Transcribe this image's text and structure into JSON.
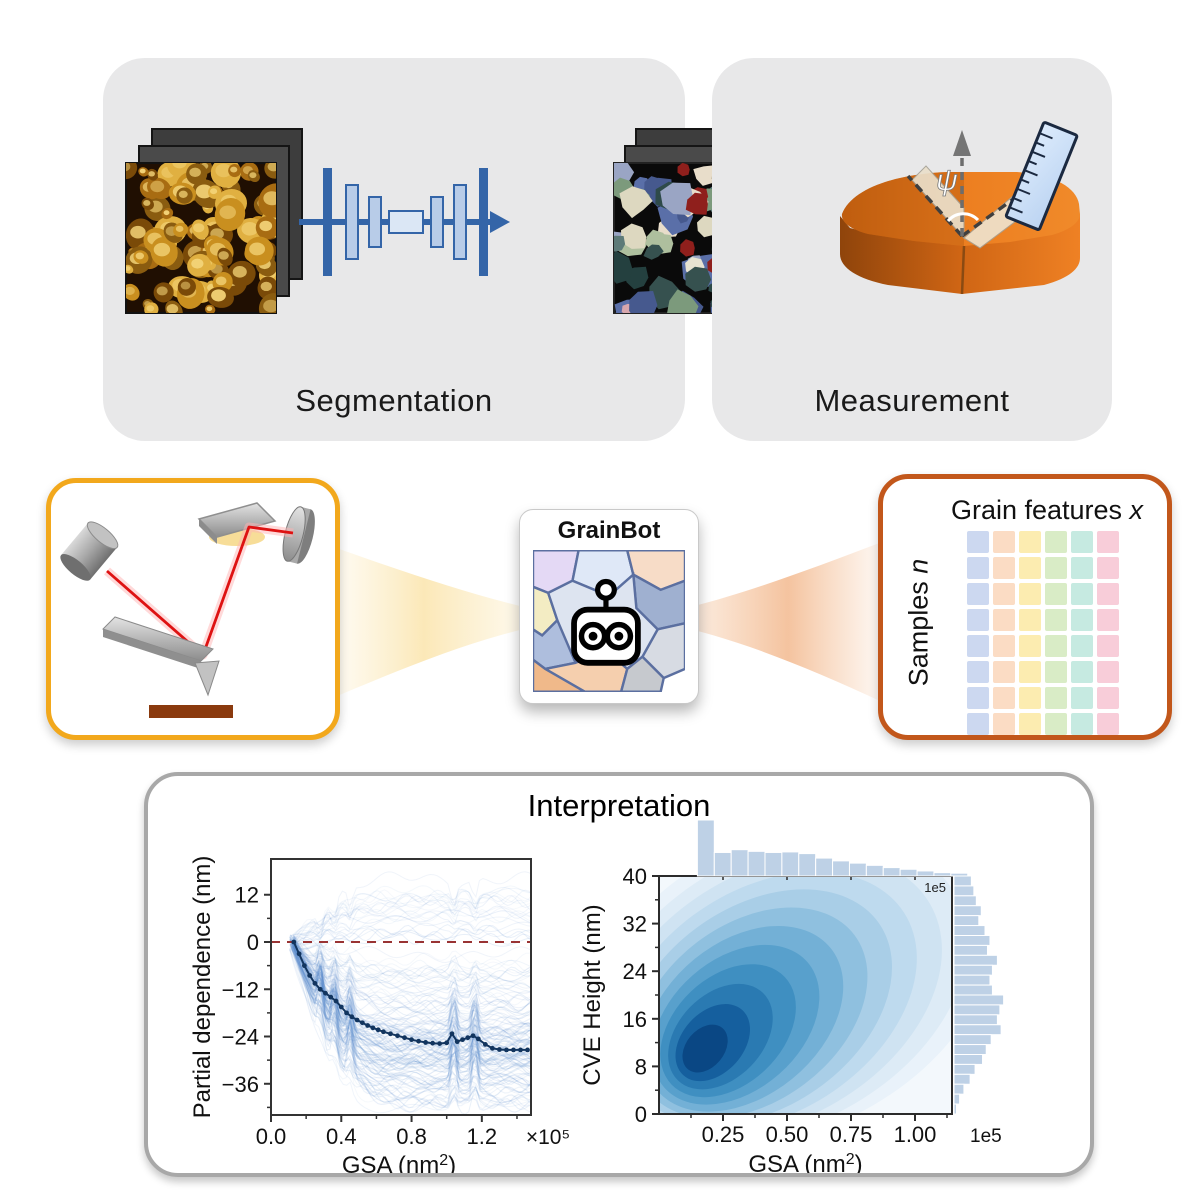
{
  "panels": {
    "segmentation": {
      "label": "Segmentation"
    },
    "measurement": {
      "label": "Measurement",
      "angle_symbol": "ψ"
    },
    "grainbot": {
      "title": "GrainBot"
    },
    "features": {
      "title": "Grain features ",
      "title_var": "x",
      "samples_label": "Samples ",
      "samples_var": "n",
      "columns": 6,
      "rows": 8,
      "column_colors": [
        "#ccd8f0",
        "#fbdcc4",
        "#fcecb0",
        "#d9ecc6",
        "#c6eae1",
        "#f8cdd9"
      ]
    },
    "interpretation": {
      "title": "Interpretation"
    }
  },
  "colors": {
    "panel_grey": "#e8e8e9",
    "afm_box_border": "#f2a81c",
    "features_box_border": "#c2571b",
    "network_blue_dark": "#3465a8",
    "network_blue_light": "#b8cce8",
    "funnel_left": "#fcecc4",
    "funnel_right": "#f6c9a5",
    "pdp_line": "#12355f",
    "ice_line": "#5588cc",
    "zero_line_red": "#993333",
    "hist_fill": "#bed1e6",
    "kde_ramp": [
      "#f3f8fc",
      "#e9f2fa",
      "#ddebf6",
      "#cfe3f2",
      "#bedaee",
      "#a9cee7",
      "#8fc0df",
      "#73b0d6",
      "#58a0cc",
      "#3f8fc1",
      "#2a7ab2",
      "#155f9e",
      "#0a4784"
    ]
  },
  "chart_data": [
    {
      "type": "line",
      "name": "partial-dependence-plot",
      "xlabel": "GSA (nm²)",
      "xlabel_sup": "2",
      "xlabel_base": "GSA (nm",
      "xlabel_close": ")",
      "ylabel": "Partial dependence (nm)",
      "x_offset_label": "×10⁵",
      "x_units": "1e5 nm^2",
      "xlim": [
        0,
        1.48
      ],
      "ylim": [
        -44,
        21
      ],
      "xticks": [
        "0.0",
        "0.4",
        "0.8",
        "1.2"
      ],
      "xtick_values": [
        0.0,
        0.4,
        0.8,
        1.2
      ],
      "yticks": [
        "12",
        "0",
        "−12",
        "−24",
        "−36"
      ],
      "ytick_values": [
        12,
        0,
        -12,
        -24,
        -36
      ],
      "zero_reference_line": 0,
      "series": [
        {
          "name": "mean-partial-dependence",
          "color": "#12355f",
          "marker": "dot",
          "x": [
            0.13,
            0.16,
            0.19,
            0.22,
            0.25,
            0.28,
            0.31,
            0.34,
            0.37,
            0.4,
            0.43,
            0.46,
            0.49,
            0.52,
            0.55,
            0.58,
            0.61,
            0.64,
            0.68,
            0.72,
            0.76,
            0.8,
            0.84,
            0.88,
            0.92,
            0.96,
            1.0,
            1.03,
            1.06,
            1.09,
            1.12,
            1.15,
            1.18,
            1.22,
            1.26,
            1.3,
            1.34,
            1.38,
            1.42,
            1.46
          ],
          "y": [
            0,
            -3,
            -6,
            -8.5,
            -10.5,
            -12,
            -13,
            -14,
            -15,
            -16.5,
            -18,
            -19,
            -19.8,
            -20.5,
            -21.2,
            -21.8,
            -22.3,
            -22.8,
            -23.3,
            -23.8,
            -24.3,
            -24.8,
            -25.2,
            -25.5,
            -25.7,
            -25.8,
            -25.6,
            -23.3,
            -25.3,
            -24.8,
            -24.3,
            -23.8,
            -24.6,
            -26.0,
            -27.0,
            -27.3,
            -27.4,
            -27.4,
            -27.4,
            -27.4
          ]
        },
        {
          "name": "ice-curves",
          "color": "#5588cc",
          "style": "ensemble of faint individual conditional expectation lines",
          "count": 150,
          "spike_positions": [
            0.28,
            0.36,
            0.45,
            1.04,
            1.16
          ]
        }
      ]
    },
    {
      "type": "heatmap",
      "name": "joint-kde-plot",
      "xlabel_base": "GSA (nm",
      "xlabel_sup": "2",
      "xlabel_close": ")",
      "ylabel": "CVE Height (nm)",
      "x_offset_label": "1e5",
      "corner_label": "1e5",
      "xlim": [
        0,
        1.145
      ],
      "ylim": [
        0,
        40
      ],
      "xticks": [
        "0.25",
        "0.50",
        "0.75",
        "1.00"
      ],
      "xtick_values": [
        0.25,
        0.5,
        0.75,
        1.0
      ],
      "yticks": [
        "0",
        "8",
        "16",
        "24",
        "32",
        "40"
      ],
      "ytick_values": [
        0,
        8,
        16,
        24,
        32,
        40
      ],
      "kde": {
        "center_x": 0.18,
        "center_y": 11,
        "ridge_end_x": 0.54,
        "ridge_end_y": 23,
        "levels": 13,
        "colormap": "Blues"
      },
      "top_histogram": {
        "start_x": 0.15,
        "bin_width": 0.066,
        "heights": [
          1.0,
          0.42,
          0.47,
          0.44,
          0.42,
          0.43,
          0.4,
          0.32,
          0.27,
          0.23,
          0.19,
          0.15,
          0.12,
          0.09,
          0.06,
          0.05
        ]
      },
      "right_histogram": {
        "start_y": 40,
        "bin_height": 1.67,
        "heights": [
          0.28,
          0.32,
          0.36,
          0.44,
          0.4,
          0.5,
          0.58,
          0.54,
          0.7,
          0.62,
          0.58,
          0.62,
          0.8,
          0.74,
          0.7,
          0.76,
          0.6,
          0.52,
          0.46,
          0.34,
          0.26,
          0.16,
          0.09,
          0.04
        ]
      }
    }
  ]
}
